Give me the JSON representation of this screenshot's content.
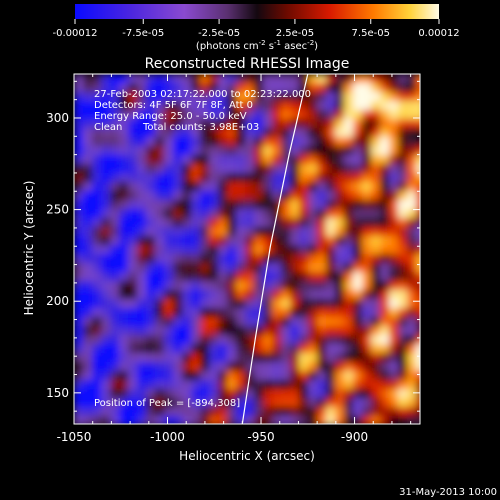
{
  "colors": {
    "background": "#000000",
    "text": "#ffffff",
    "colormap": [
      "#0a0aff",
      "#5a2bd6",
      "#8a4ad0",
      "#6a3a8a",
      "#1a0a14",
      "#6a0a00",
      "#d81a00",
      "#ff7a00",
      "#ffd23a",
      "#fffbe6"
    ]
  },
  "colorbar": {
    "tick_labels": [
      "-0.00012",
      "-7.5e-05",
      "-2.5e-05",
      "2.5e-05",
      "7.5e-05",
      "0.00012"
    ],
    "unit_label": "(photons cm",
    "unit_sup1": "-2",
    "unit_mid": " s",
    "unit_sup2": "-1",
    "unit_end": " asec",
    "unit_sup3": "-2",
    "unit_close": ")"
  },
  "plot": {
    "title": "Reconstructed RHESSI Image",
    "info_line1": "27-Feb-2003 02:17:22.000 to 02:23:22.000",
    "info_line2": "Detectors: 4F 5F 6F 7F 8F, Att 0",
    "info_line3": "Energy Range: 25.0 - 50.0 keV",
    "info_line4_a": "Clean",
    "info_line4_b": "Total counts: 3.98E+03",
    "peak_label": "Position of Peak = [-894,308]",
    "footer_date": "31-May-2013 10:00"
  },
  "chart_data": {
    "type": "heatmap",
    "title": "Reconstructed RHESSI Image",
    "xlabel": "Heliocentric X (arcsec)",
    "ylabel": "Heliocentric Y (arcsec)",
    "xlim": [
      -1050,
      -865
    ],
    "ylim": [
      133,
      324
    ],
    "x_ticks": [
      -1050,
      -1000,
      -950,
      -900
    ],
    "y_ticks": [
      150,
      200,
      250,
      300
    ],
    "x_tick_labels": [
      "-1050",
      "-1000",
      "-950",
      "-900"
    ],
    "y_tick_labels": [
      "150",
      "200",
      "250",
      "300"
    ],
    "color_range": [
      -0.00012,
      0.00012
    ],
    "peak": [
      -894,
      308
    ],
    "limb_arc": [
      [
        -960,
        133
      ],
      [
        -953,
        180
      ],
      [
        -945,
        230
      ],
      [
        -935,
        280
      ],
      [
        -925,
        324
      ]
    ]
  }
}
